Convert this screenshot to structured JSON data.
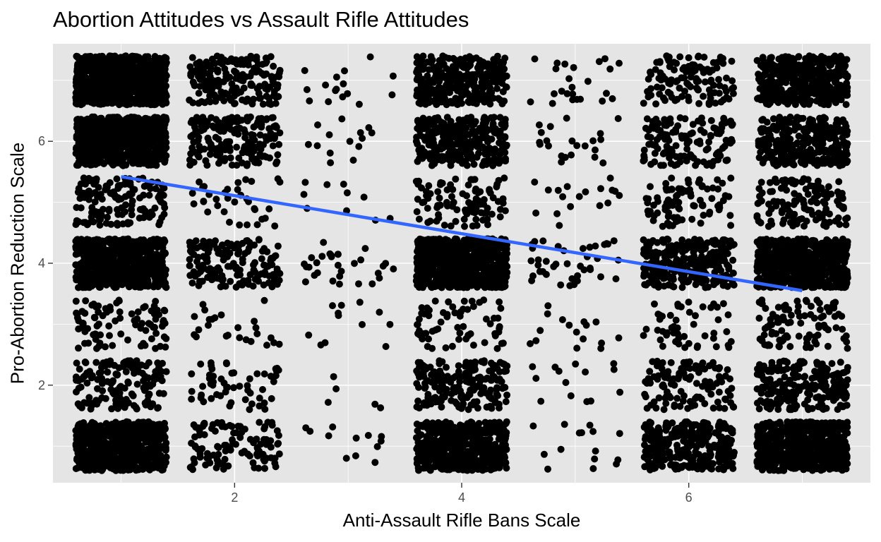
{
  "chart_data": {
    "type": "scatter",
    "title": "Abortion Attitudes vs Assault Rifle Attitudes",
    "xlabel": "Anti-Assault Rifle Bans Scale",
    "ylabel": "Pro-Abortion Reduction Scale",
    "xlim": [
      0.4,
      7.6
    ],
    "ylim": [
      0.4,
      7.6
    ],
    "x_ticks": [
      2,
      4,
      6
    ],
    "y_ticks": [
      2,
      4,
      6
    ],
    "x_tick_labels": [
      "2",
      "4",
      "6"
    ],
    "y_tick_labels": [
      "2",
      "4",
      "6"
    ],
    "jitter": 0.4,
    "grid": true,
    "panel_background": "#e5e5e5",
    "point_color": "#000000",
    "trend_line": {
      "method": "lm",
      "color": "#3366ff",
      "x": [
        1,
        7
      ],
      "y": [
        5.42,
        3.55
      ]
    },
    "cell_counts_by_y": {
      "1": [
        600,
        110,
        12,
        500,
        15,
        300,
        600
      ],
      "2": [
        150,
        55,
        5,
        200,
        14,
        120,
        220
      ],
      "3": [
        90,
        25,
        12,
        65,
        16,
        50,
        100
      ],
      "4": [
        700,
        160,
        30,
        700,
        40,
        300,
        600
      ],
      "5": [
        140,
        35,
        10,
        100,
        18,
        90,
        130
      ],
      "6": [
        700,
        180,
        14,
        300,
        22,
        140,
        320
      ],
      "7": [
        800,
        190,
        16,
        320,
        24,
        120,
        400
      ]
    }
  }
}
